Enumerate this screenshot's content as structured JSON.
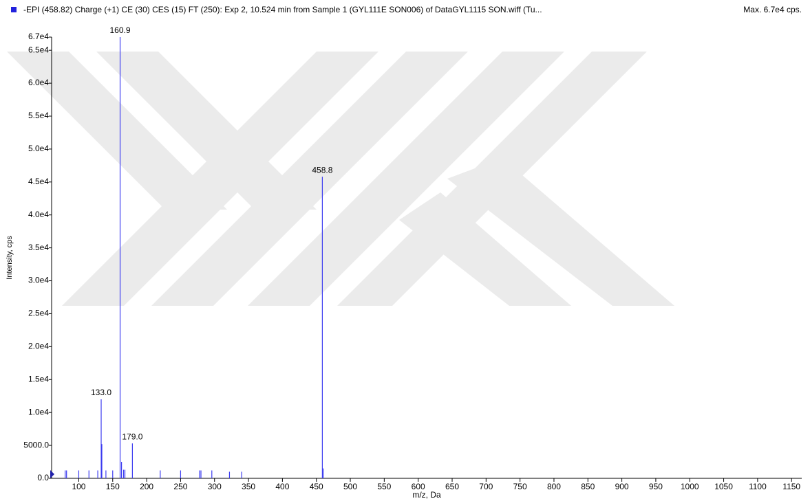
{
  "chart_data": {
    "type": "stick",
    "title": "-EPI (458.82) Charge (+1) CE (30) CES (15) FT (250): Exp 2, 10.524 min from Sample 1 (GYL111E SON006) of DataGYL1115 SON.wiff (Tu...",
    "subtitle": "Max. 6.7e4 cps.",
    "x_label": "m/z, Da",
    "y_label": "Intensity, cps",
    "xlim": [
      60,
      1165
    ],
    "ylim": [
      0,
      67000
    ],
    "xticks": [
      100,
      150,
      200,
      250,
      300,
      350,
      400,
      450,
      500,
      550,
      600,
      650,
      700,
      750,
      800,
      850,
      900,
      950,
      1000,
      1050,
      1100,
      1150
    ],
    "yticks": [
      {
        "value": 0,
        "label": "0.0"
      },
      {
        "value": 5000,
        "label": "5000.0"
      },
      {
        "value": 10000,
        "label": "1.0e4"
      },
      {
        "value": 15000,
        "label": "1.5e4"
      },
      {
        "value": 20000,
        "label": "2.0e4"
      },
      {
        "value": 25000,
        "label": "2.5e4"
      },
      {
        "value": 30000,
        "label": "3.0e4"
      },
      {
        "value": 35000,
        "label": "3.5e4"
      },
      {
        "value": 40000,
        "label": "4.0e4"
      },
      {
        "value": 45000,
        "label": "4.5e4"
      },
      {
        "value": 50000,
        "label": "5.0e4"
      },
      {
        "value": 55000,
        "label": "5.5e4"
      },
      {
        "value": 60000,
        "label": "6.0e4"
      },
      {
        "value": 65000,
        "label": "6.5e4"
      },
      {
        "value": 67000,
        "label": "6.7e4"
      }
    ],
    "series": [
      {
        "color": "#3d3df0",
        "x": [
          80,
          82,
          100,
          115,
          128,
          133.0,
          134,
          140,
          150,
          160.9,
          163,
          166,
          168,
          179.0,
          220,
          250,
          278,
          280,
          296,
          322,
          340,
          458.8,
          460
        ],
        "values": [
          1200,
          1200,
          1200,
          1200,
          1200,
          12000,
          5200,
          1200,
          1200,
          67000,
          2500,
          1300,
          1300,
          5300,
          1200,
          1200,
          1200,
          1200,
          1200,
          1000,
          1000,
          45800,
          1500
        ]
      }
    ],
    "annotations": [
      {
        "x": 160.9,
        "y": 67000,
        "label": "160.9"
      },
      {
        "x": 458.8,
        "y": 45800,
        "label": "458.8"
      },
      {
        "x": 133.0,
        "y": 12000,
        "label": "133.0"
      },
      {
        "x": 179.0,
        "y": 5300,
        "label": "179.0"
      }
    ]
  }
}
